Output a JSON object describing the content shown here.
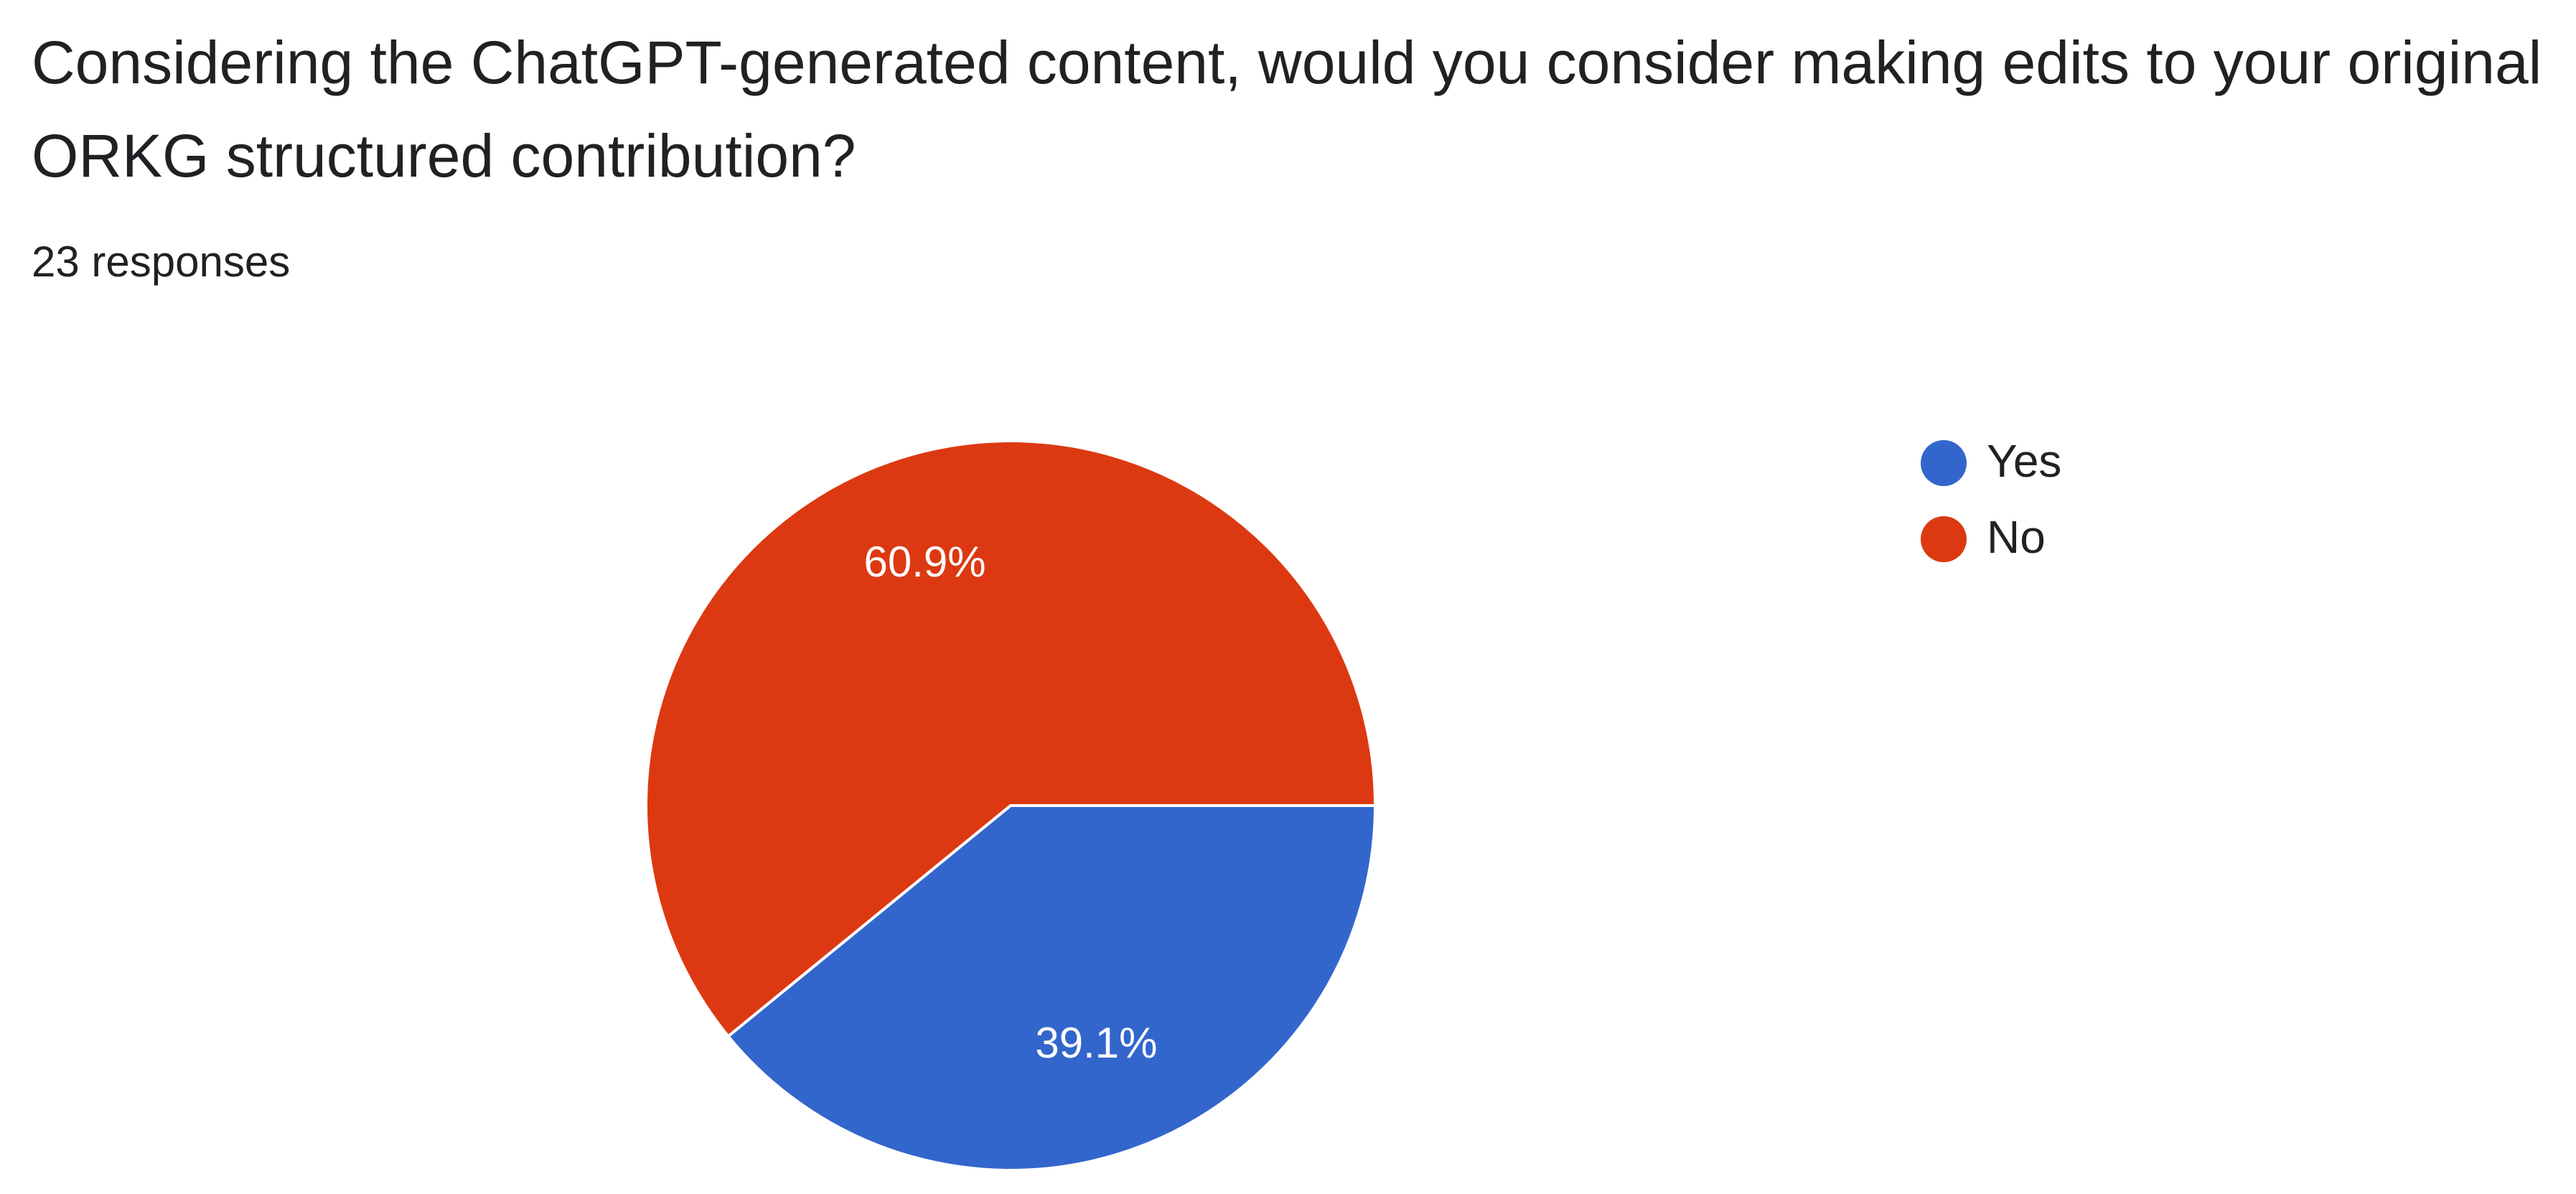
{
  "chart_data": {
    "type": "pie",
    "title": "Considering the ChatGPT-generated content, would you consider making edits to your original ORKG structured contribution?",
    "subtitle": "23 responses",
    "categories": [
      "Yes",
      "No"
    ],
    "values": [
      39.1,
      60.9
    ],
    "value_labels": [
      "39.1%",
      "60.9%"
    ],
    "colors": [
      "#3366cc",
      "#dc3912"
    ],
    "legend": "right"
  }
}
